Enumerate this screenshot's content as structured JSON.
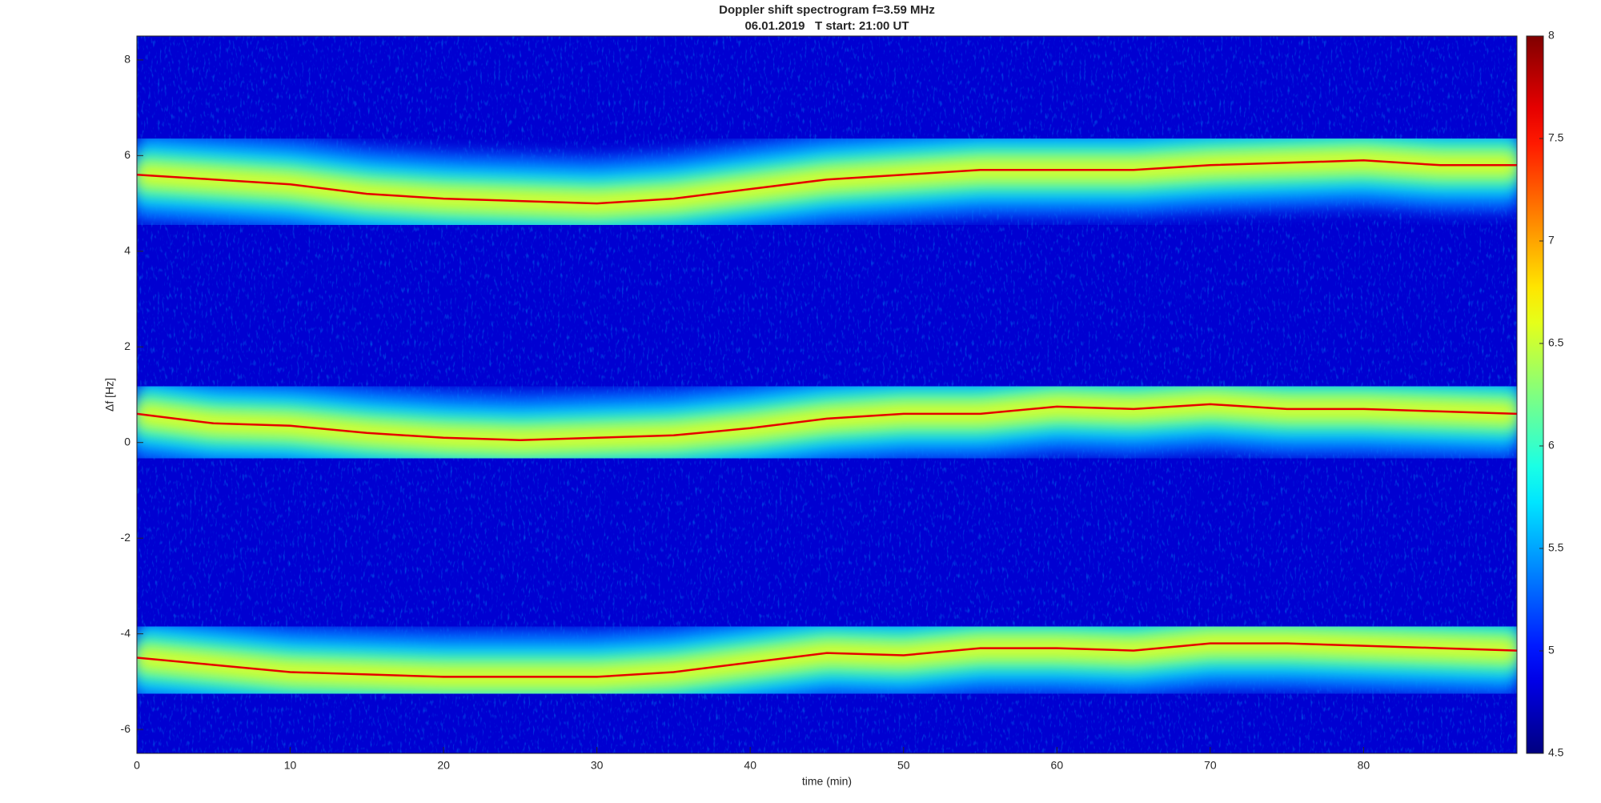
{
  "chart_data": {
    "type": "spectrogram",
    "title": "Doppler shift spectrogram f=3.59 MHz",
    "subtitle": "06.01.2019   T start: 21:00 UT",
    "xlabel": "time (min)",
    "ylabel": "Δf [Hz]",
    "colormap": "jet",
    "x": [
      0,
      5,
      10,
      15,
      20,
      25,
      30,
      35,
      40,
      45,
      50,
      55,
      60,
      65,
      70,
      75,
      80,
      85,
      90
    ],
    "series": [
      {
        "values": [
          5.6,
          5.5,
          5.4,
          5.2,
          5.1,
          5.05,
          5.0,
          5.1,
          5.3,
          5.5,
          5.6,
          5.7,
          5.7,
          5.7,
          5.8,
          5.85,
          5.9,
          5.8,
          5.8
        ]
      },
      {
        "values": [
          0.6,
          0.4,
          0.35,
          0.2,
          0.1,
          0.05,
          0.1,
          0.15,
          0.3,
          0.5,
          0.6,
          0.6,
          0.75,
          0.7,
          0.8,
          0.7,
          0.7,
          0.65,
          0.6
        ]
      },
      {
        "values": [
          -4.5,
          -4.65,
          -4.8,
          -4.85,
          -4.9,
          -4.9,
          -4.9,
          -4.8,
          -4.6,
          -4.4,
          -4.45,
          -4.3,
          -4.3,
          -4.35,
          -4.2,
          -4.2,
          -4.25,
          -4.3,
          -4.35
        ]
      }
    ],
    "xlim": [
      0,
      90
    ],
    "xticks": [
      0,
      10,
      20,
      30,
      40,
      50,
      60,
      70,
      80
    ],
    "ylim": [
      -6.5,
      8.5
    ],
    "yticks": [
      -6,
      -4,
      -2,
      0,
      2,
      4,
      6,
      8
    ],
    "clim": [
      4.5,
      8
    ],
    "cticks": [
      4.5,
      5,
      5.5,
      6,
      6.5,
      7,
      7.5,
      8
    ]
  }
}
